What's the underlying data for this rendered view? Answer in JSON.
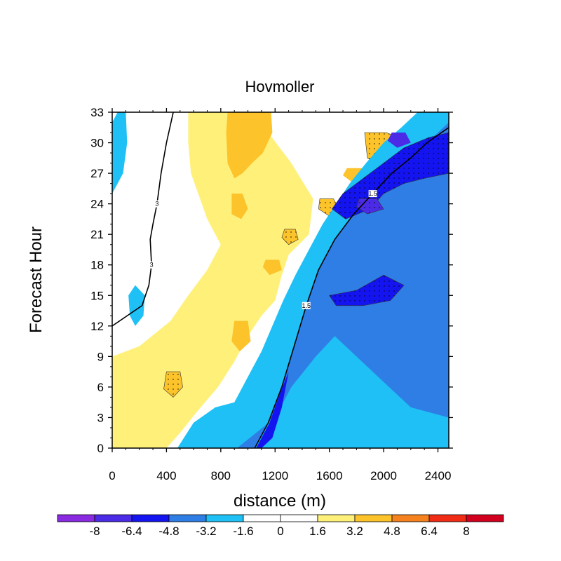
{
  "chart_data": {
    "type": "heatmap",
    "title": "Hovmoller",
    "xlabel": "distance (m)",
    "ylabel": "Forecast Hour",
    "xlim": [
      0,
      2480
    ],
    "ylim": [
      0,
      33
    ],
    "xticks": [
      0,
      400,
      800,
      1200,
      1600,
      2000,
      2400
    ],
    "yticks": [
      0,
      3,
      6,
      9,
      12,
      15,
      18,
      21,
      24,
      27,
      30,
      33
    ],
    "colorbar": {
      "levels": [
        -8,
        -6.4,
        -4.8,
        -3.2,
        -1.6,
        0,
        1.6,
        3.2,
        4.8,
        6.4,
        8
      ],
      "labels": [
        "-8",
        "-6.4",
        "-4.8",
        "-3.2",
        "-1.6",
        "0",
        "1.6",
        "3.2",
        "4.8",
        "6.4",
        "8"
      ],
      "colors": [
        "#8a2be2",
        "#4b2be6",
        "#1414f0",
        "#2f7ee6",
        "#1ec0f5",
        "#ffffff",
        "#ffffff",
        "#fff07a",
        "#fcc32a",
        "#f5821e",
        "#f02d14",
        "#d2001e"
      ]
    },
    "contours": [
      {
        "label": "3",
        "points": [
          [
            450,
            33
          ],
          [
            400,
            30
          ],
          [
            360,
            27
          ],
          [
            330,
            24
          ],
          [
            300,
            22
          ],
          [
            280,
            20.5
          ],
          [
            290,
            18
          ],
          [
            270,
            16
          ],
          [
            220,
            14
          ],
          [
            0,
            12
          ]
        ]
      },
      {
        "label": "1.5",
        "points": [
          [
            1050,
            0
          ],
          [
            1150,
            2.5
          ],
          [
            1250,
            6
          ],
          [
            1340,
            10
          ],
          [
            1430,
            14
          ],
          [
            1520,
            17.5
          ],
          [
            1640,
            20.5
          ],
          [
            1780,
            23
          ],
          [
            1920,
            25
          ],
          [
            2060,
            27
          ],
          [
            2200,
            28.5
          ],
          [
            2320,
            30
          ],
          [
            2480,
            31.5
          ]
        ]
      }
    ],
    "fields": [
      {
        "label": "-1.6",
        "points": [
          [
            0,
            32
          ],
          [
            40,
            33
          ],
          [
            100,
            33
          ],
          [
            110,
            30
          ],
          [
            80,
            27
          ],
          [
            0,
            25
          ]
        ]
      },
      {
        "label": "-1.6",
        "points": [
          [
            120,
            15
          ],
          [
            170,
            16
          ],
          [
            240,
            15
          ],
          [
            230,
            13
          ],
          [
            170,
            12
          ],
          [
            130,
            13
          ]
        ]
      },
      {
        "label": "1.6",
        "points": [
          [
            700,
            33
          ],
          [
            900,
            33
          ],
          [
            1150,
            31
          ],
          [
            1320,
            28
          ],
          [
            1480,
            24.5
          ],
          [
            1450,
            21
          ],
          [
            1300,
            19
          ],
          [
            1250,
            17
          ],
          [
            1200,
            14.5
          ],
          [
            1100,
            13
          ],
          [
            1000,
            11
          ],
          [
            900,
            8.5
          ],
          [
            780,
            6
          ],
          [
            620,
            3.5
          ],
          [
            500,
            1.5
          ],
          [
            400,
            0
          ],
          [
            0,
            0
          ],
          [
            0,
            9
          ],
          [
            200,
            10
          ],
          [
            430,
            12.5
          ],
          [
            560,
            15
          ],
          [
            700,
            17.5
          ],
          [
            800,
            20
          ],
          [
            700,
            22.5
          ],
          [
            580,
            27
          ],
          [
            560,
            30
          ],
          [
            560,
            33
          ]
        ]
      },
      {
        "label": "3.2",
        "points": [
          [
            850,
            33
          ],
          [
            1170,
            33
          ],
          [
            1180,
            31
          ],
          [
            1110,
            29
          ],
          [
            1030,
            28
          ],
          [
            960,
            27
          ],
          [
            900,
            26.5
          ],
          [
            850,
            28
          ],
          [
            840,
            31
          ]
        ]
      },
      {
        "label": "3.2",
        "points": [
          [
            1860,
            31
          ],
          [
            2020,
            31
          ],
          [
            2200,
            30
          ],
          [
            2150,
            28
          ],
          [
            2000,
            27.5
          ],
          [
            1880,
            28.5
          ]
        ]
      },
      {
        "label": "3.2",
        "points": [
          [
            880,
            25
          ],
          [
            960,
            25
          ],
          [
            1000,
            23.5
          ],
          [
            950,
            22.5
          ],
          [
            880,
            23
          ]
        ]
      },
      {
        "label": "3.2",
        "points": [
          [
            1530,
            24.5
          ],
          [
            1630,
            24.5
          ],
          [
            1670,
            23.5
          ],
          [
            1600,
            22.8
          ],
          [
            1520,
            23.5
          ]
        ]
      },
      {
        "label": "3.2",
        "points": [
          [
            1730,
            27.5
          ],
          [
            1850,
            27.5
          ],
          [
            1880,
            26.5
          ],
          [
            1780,
            26
          ],
          [
            1700,
            26.8
          ]
        ]
      },
      {
        "label": "3.2",
        "points": [
          [
            1270,
            21.5
          ],
          [
            1350,
            21.5
          ],
          [
            1370,
            20.5
          ],
          [
            1300,
            20
          ],
          [
            1250,
            20.7
          ]
        ]
      },
      {
        "label": "3.2",
        "points": [
          [
            1130,
            18.5
          ],
          [
            1230,
            18.5
          ],
          [
            1250,
            17.5
          ],
          [
            1160,
            17
          ],
          [
            1110,
            17.8
          ]
        ]
      },
      {
        "label": "3.2",
        "points": [
          [
            400,
            7.5
          ],
          [
            500,
            7.5
          ],
          [
            520,
            6
          ],
          [
            450,
            5
          ],
          [
            380,
            5.8
          ]
        ]
      },
      {
        "label": "3.2",
        "points": [
          [
            900,
            12.5
          ],
          [
            1000,
            12.5
          ],
          [
            1020,
            10.5
          ],
          [
            940,
            9.5
          ],
          [
            880,
            10.5
          ]
        ]
      },
      {
        "label": "-1.6",
        "points": [
          [
            2480,
            33
          ],
          [
            2480,
            0
          ],
          [
            480,
            0
          ],
          [
            600,
            2.5
          ],
          [
            760,
            4
          ],
          [
            900,
            4.5
          ],
          [
            1000,
            7
          ],
          [
            1100,
            9.5
          ],
          [
            1180,
            12
          ],
          [
            1260,
            14.5
          ],
          [
            1350,
            17
          ],
          [
            1450,
            19.5
          ],
          [
            1550,
            22
          ],
          [
            1650,
            24
          ],
          [
            1750,
            26
          ],
          [
            1870,
            28
          ],
          [
            2000,
            30
          ],
          [
            2130,
            31.5
          ],
          [
            2250,
            33
          ]
        ]
      },
      {
        "label": "-3.2",
        "points": [
          [
            2480,
            32
          ],
          [
            2480,
            3
          ],
          [
            2200,
            4
          ],
          [
            2000,
            6.5
          ],
          [
            1800,
            9
          ],
          [
            1640,
            11
          ],
          [
            1500,
            9
          ],
          [
            1320,
            6
          ],
          [
            1200,
            3
          ],
          [
            1060,
            1.5
          ],
          [
            920,
            0
          ],
          [
            1050,
            0
          ],
          [
            1150,
            2.5
          ],
          [
            1250,
            6
          ],
          [
            1340,
            10
          ],
          [
            1430,
            14
          ],
          [
            1520,
            17.5
          ],
          [
            1640,
            20.5
          ],
          [
            1780,
            23
          ],
          [
            1920,
            25
          ],
          [
            2060,
            27
          ],
          [
            2200,
            28.5
          ],
          [
            2320,
            30
          ]
        ]
      },
      {
        "label": "-4.8",
        "points": [
          [
            2480,
            31
          ],
          [
            2480,
            27
          ],
          [
            2300,
            26.5
          ],
          [
            2150,
            26
          ],
          [
            2000,
            25
          ],
          [
            1900,
            23.5
          ],
          [
            1720,
            22.5
          ],
          [
            1620,
            23.5
          ],
          [
            1700,
            25
          ],
          [
            1850,
            26.5
          ],
          [
            2000,
            28
          ],
          [
            2150,
            29.5
          ],
          [
            2330,
            30.5
          ]
        ]
      },
      {
        "label": "-4.8",
        "points": [
          [
            1060,
            0
          ],
          [
            1160,
            2.5
          ],
          [
            1240,
            5.5
          ],
          [
            1300,
            7.5
          ],
          [
            1250,
            4
          ],
          [
            1180,
            1
          ],
          [
            1100,
            0
          ]
        ]
      },
      {
        "label": "-4.8",
        "points": [
          [
            1600,
            15
          ],
          [
            1800,
            15.5
          ],
          [
            2000,
            17
          ],
          [
            2150,
            16
          ],
          [
            2050,
            14.5
          ],
          [
            1850,
            14
          ],
          [
            1650,
            14
          ]
        ]
      },
      {
        "label": "-6.4",
        "points": [
          [
            2060,
            31
          ],
          [
            2160,
            31
          ],
          [
            2200,
            30
          ],
          [
            2100,
            29.5
          ],
          [
            2030,
            30.2
          ]
        ]
      },
      {
        "label": "-6.4",
        "points": [
          [
            1820,
            24.5
          ],
          [
            1950,
            24.5
          ],
          [
            2000,
            23.5
          ],
          [
            1880,
            23
          ],
          [
            1800,
            23.7
          ]
        ]
      }
    ]
  }
}
